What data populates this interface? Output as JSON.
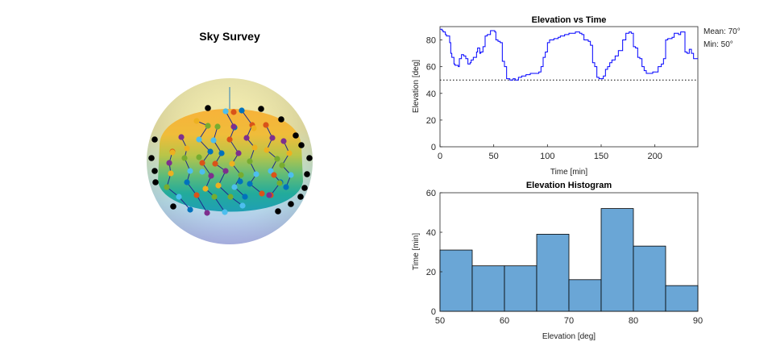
{
  "sky": {
    "title": "Sky Survey",
    "colors": {
      "dot_black": "#000000",
      "path_blue": "#1f2a8c",
      "pole_line": "#2c7fb8"
    }
  },
  "chart_data": [
    {
      "type": "line",
      "title": "Elevation vs Time",
      "xlabel": "Time [min]",
      "ylabel": "Elevation [deg]",
      "xlim": [
        0,
        240
      ],
      "ylim": [
        0,
        90
      ],
      "xticks": [
        0,
        50,
        100,
        150,
        200
      ],
      "yticks": [
        0,
        20,
        40,
        60,
        80
      ],
      "grid": false,
      "annotations": [
        "Mean: 70°",
        "Min: 50°"
      ],
      "min_line": 50,
      "series": [
        {
          "color": "#0000ff",
          "x": [
            0,
            2,
            3,
            5,
            6,
            9,
            10,
            11,
            13,
            14,
            17,
            18,
            20,
            22,
            24,
            26,
            28,
            29,
            31,
            34,
            35,
            37,
            38,
            40,
            42,
            44,
            45,
            47,
            49,
            51,
            52,
            54,
            56,
            58,
            60,
            62,
            65,
            68,
            70,
            73,
            76,
            80,
            84,
            88,
            92,
            94,
            96,
            98,
            100,
            102,
            104,
            106,
            108,
            110,
            112,
            114,
            116,
            118,
            120,
            122,
            124,
            126,
            128,
            130,
            132,
            134,
            136,
            138,
            140,
            142,
            144,
            146,
            148,
            150,
            152,
            154,
            156,
            158,
            160,
            163,
            166,
            170,
            173,
            176,
            178,
            180,
            182,
            184,
            186,
            188,
            190,
            192,
            194,
            196,
            198,
            200,
            203,
            206,
            208,
            210,
            212,
            214,
            216,
            218,
            220,
            222,
            224,
            226,
            228,
            230,
            232,
            234,
            236,
            238,
            240
          ],
          "y": [
            88,
            87,
            86,
            84,
            83,
            78,
            70,
            67,
            62,
            61,
            60,
            66,
            69,
            68,
            66,
            62,
            63,
            65,
            67,
            71,
            74,
            70,
            71,
            75,
            83,
            84,
            84,
            87,
            87,
            86,
            80,
            79,
            78,
            64,
            60,
            51,
            50,
            51,
            50,
            52,
            53,
            54,
            55,
            55,
            56,
            60,
            67,
            71,
            78,
            80,
            80,
            81,
            81,
            82,
            83,
            83,
            84,
            84,
            85,
            85,
            85,
            86,
            86,
            85,
            84,
            80,
            80,
            79,
            76,
            63,
            60,
            52,
            51,
            51,
            53,
            58,
            60,
            63,
            65,
            68,
            72,
            80,
            85,
            86,
            85,
            75,
            74,
            67,
            66,
            60,
            57,
            55,
            55,
            55,
            56,
            56,
            60,
            62,
            66,
            80,
            81,
            81,
            82,
            85,
            85,
            84,
            86,
            86,
            71,
            70,
            73,
            70,
            66,
            66,
            66
          ]
        }
      ]
    },
    {
      "type": "bar",
      "title": "Elevation Histogram",
      "xlabel": "Elevation [deg]",
      "ylabel": "Time [min]",
      "xlim": [
        50,
        90
      ],
      "ylim": [
        0,
        60
      ],
      "xticks": [
        50,
        60,
        70,
        80,
        90
      ],
      "yticks": [
        0,
        20,
        40,
        60
      ],
      "bin_edges": [
        50,
        55,
        60,
        65,
        70,
        75,
        80,
        85,
        90
      ],
      "values": [
        31,
        23,
        23,
        39,
        16,
        52,
        33,
        13
      ],
      "color": "#6aa6d6"
    }
  ]
}
